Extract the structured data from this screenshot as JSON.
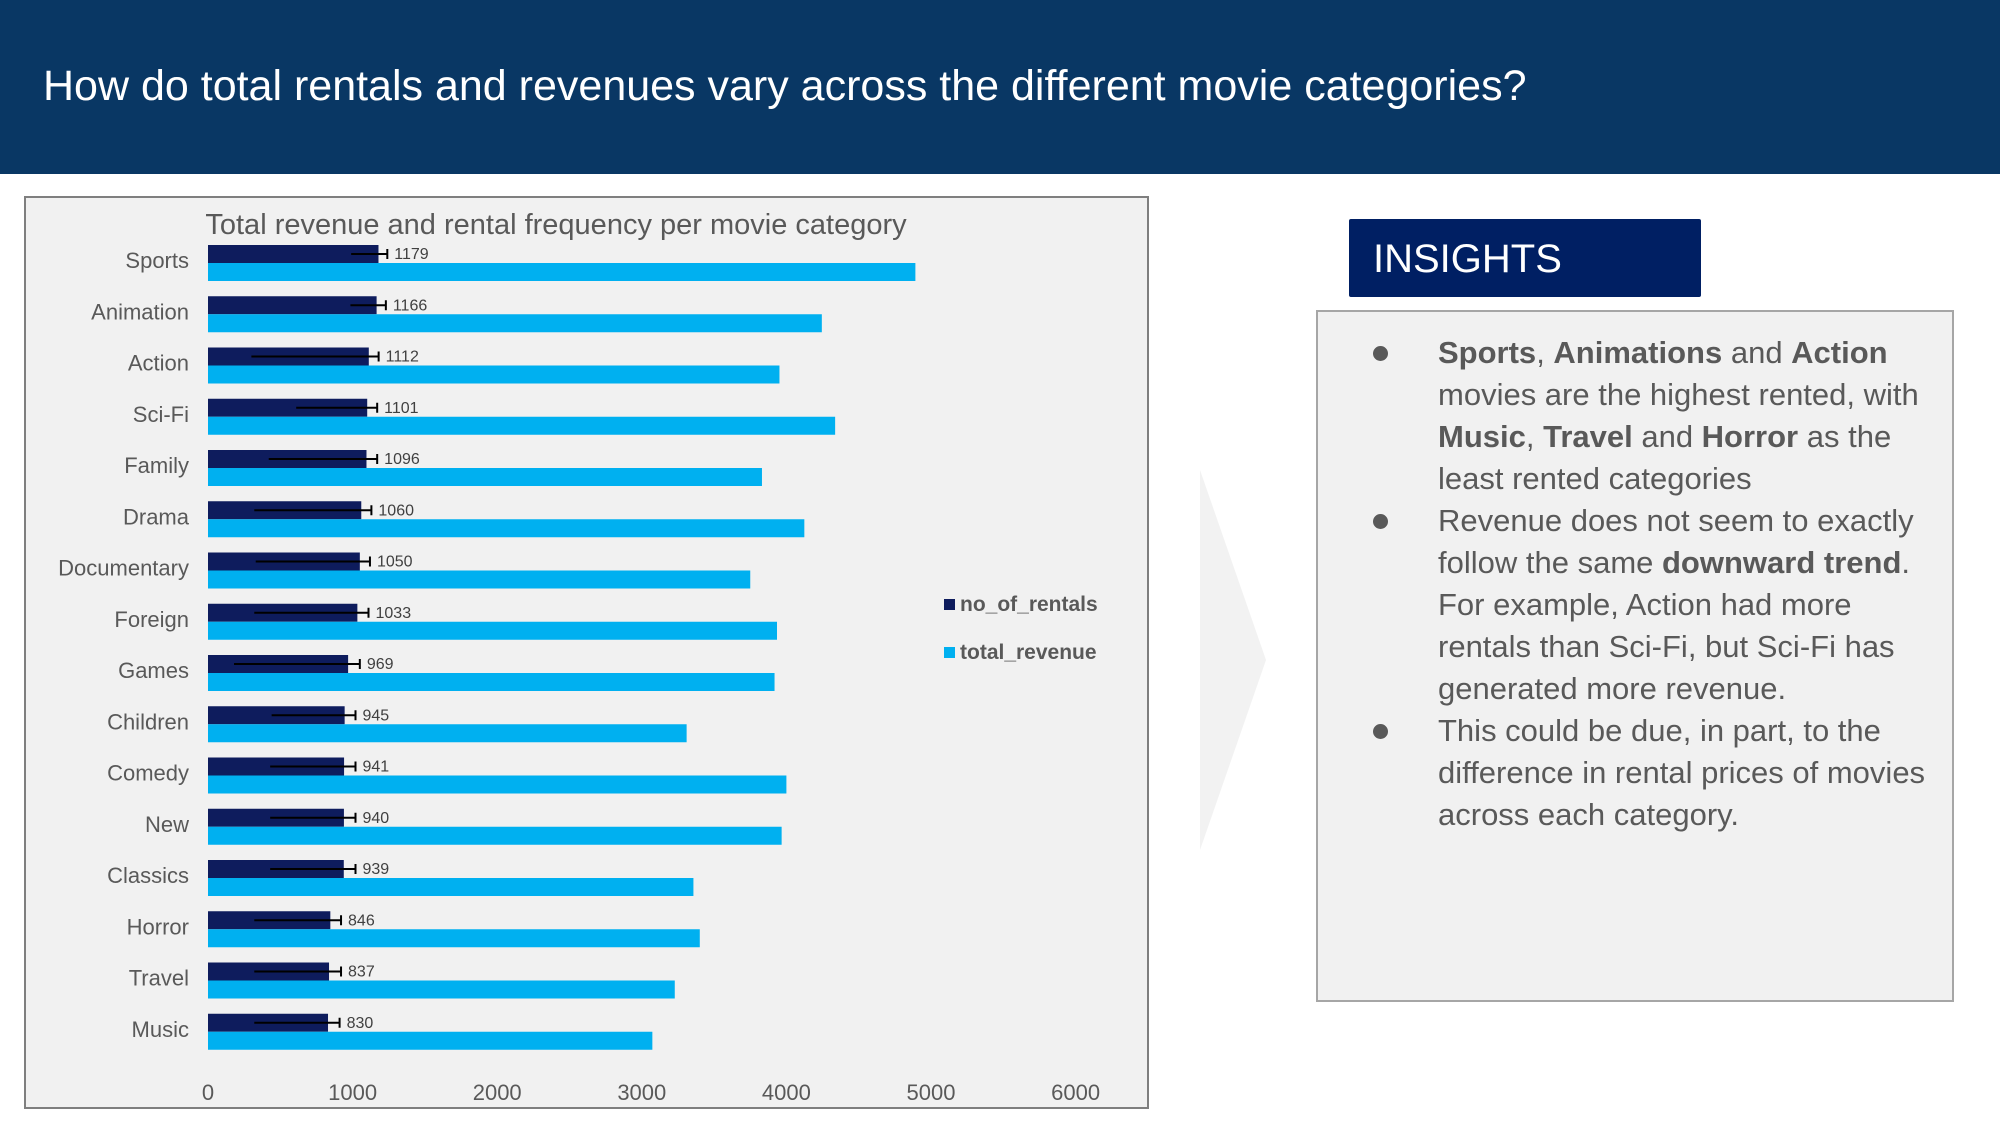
{
  "header": {
    "title": "How do total rentals and revenues vary across the different movie categories?"
  },
  "colors": {
    "header_bg": "#093764",
    "rentals": "#0e1c5d",
    "revenue": "#00b0f0",
    "insights_badge": "#001f63",
    "panel_bg": "#f1f1f1"
  },
  "chart_data": {
    "type": "bar",
    "orientation": "horizontal",
    "title": "Total revenue and rental frequency per movie category",
    "categories": [
      "Sports",
      "Animation",
      "Action",
      "Sci-Fi",
      "Family",
      "Drama",
      "Documentary",
      "Foreign",
      "Games",
      "Children",
      "Comedy",
      "New",
      "Classics",
      "Horror",
      "Travel",
      "Music"
    ],
    "series": [
      {
        "name": "no_of_rentals",
        "values": [
          1179,
          1166,
          1112,
          1101,
          1096,
          1060,
          1050,
          1033,
          969,
          945,
          941,
          940,
          939,
          846,
          837,
          830
        ],
        "error_low": [
          990,
          985,
          300,
          610,
          420,
          320,
          330,
          320,
          180,
          440,
          430,
          430,
          430,
          320,
          320,
          320
        ],
        "error_high": [
          1240,
          1230,
          1180,
          1170,
          1170,
          1130,
          1120,
          1110,
          1050,
          1020,
          1020,
          1020,
          1020,
          920,
          920,
          910
        ]
      },
      {
        "name": "total_revenue",
        "values": [
          4892,
          4245,
          3952,
          4337,
          3831,
          4124,
          3750,
          3935,
          3918,
          3310,
          4000,
          3967,
          3357,
          3401,
          3228,
          3073
        ]
      }
    ],
    "data_labels": [
      "1179",
      "1166",
      "1112",
      "1101",
      "1096",
      "1060",
      "1050",
      "1033",
      "969",
      "945",
      "941",
      "940",
      "939",
      "846",
      "837",
      "830"
    ],
    "xlim": [
      0,
      6000
    ],
    "x_ticks": [
      "0",
      "1000",
      "2000",
      "3000",
      "4000",
      "5000",
      "6000"
    ],
    "grid": false,
    "legend_position": "right"
  },
  "insights": {
    "title": "INSIGHTS",
    "items": [
      [
        {
          "t": "Sports",
          "b": true
        },
        {
          "t": ", ",
          "b": false
        },
        {
          "t": "Animations",
          "b": true
        },
        {
          "t": " and ",
          "b": false
        },
        {
          "t": "Action",
          "b": true
        },
        {
          "t": " movies are the highest rented, with ",
          "b": false
        },
        {
          "t": "Music",
          "b": true
        },
        {
          "t": ", ",
          "b": false
        },
        {
          "t": "Travel",
          "b": true
        },
        {
          "t": " and ",
          "b": false
        },
        {
          "t": "Horror",
          "b": true
        },
        {
          "t": " as the least rented categories",
          "b": false
        }
      ],
      [
        {
          "t": "Revenue does not seem to exactly follow the same ",
          "b": false
        },
        {
          "t": "downward trend",
          "b": true
        },
        {
          "t": ". For example, Action had more rentals than Sci-Fi, but Sci-Fi has generated more revenue.",
          "b": false
        }
      ],
      [
        {
          "t": "This could be due, in part, to the difference in rental prices of movies across each category.",
          "b": false
        }
      ]
    ]
  }
}
